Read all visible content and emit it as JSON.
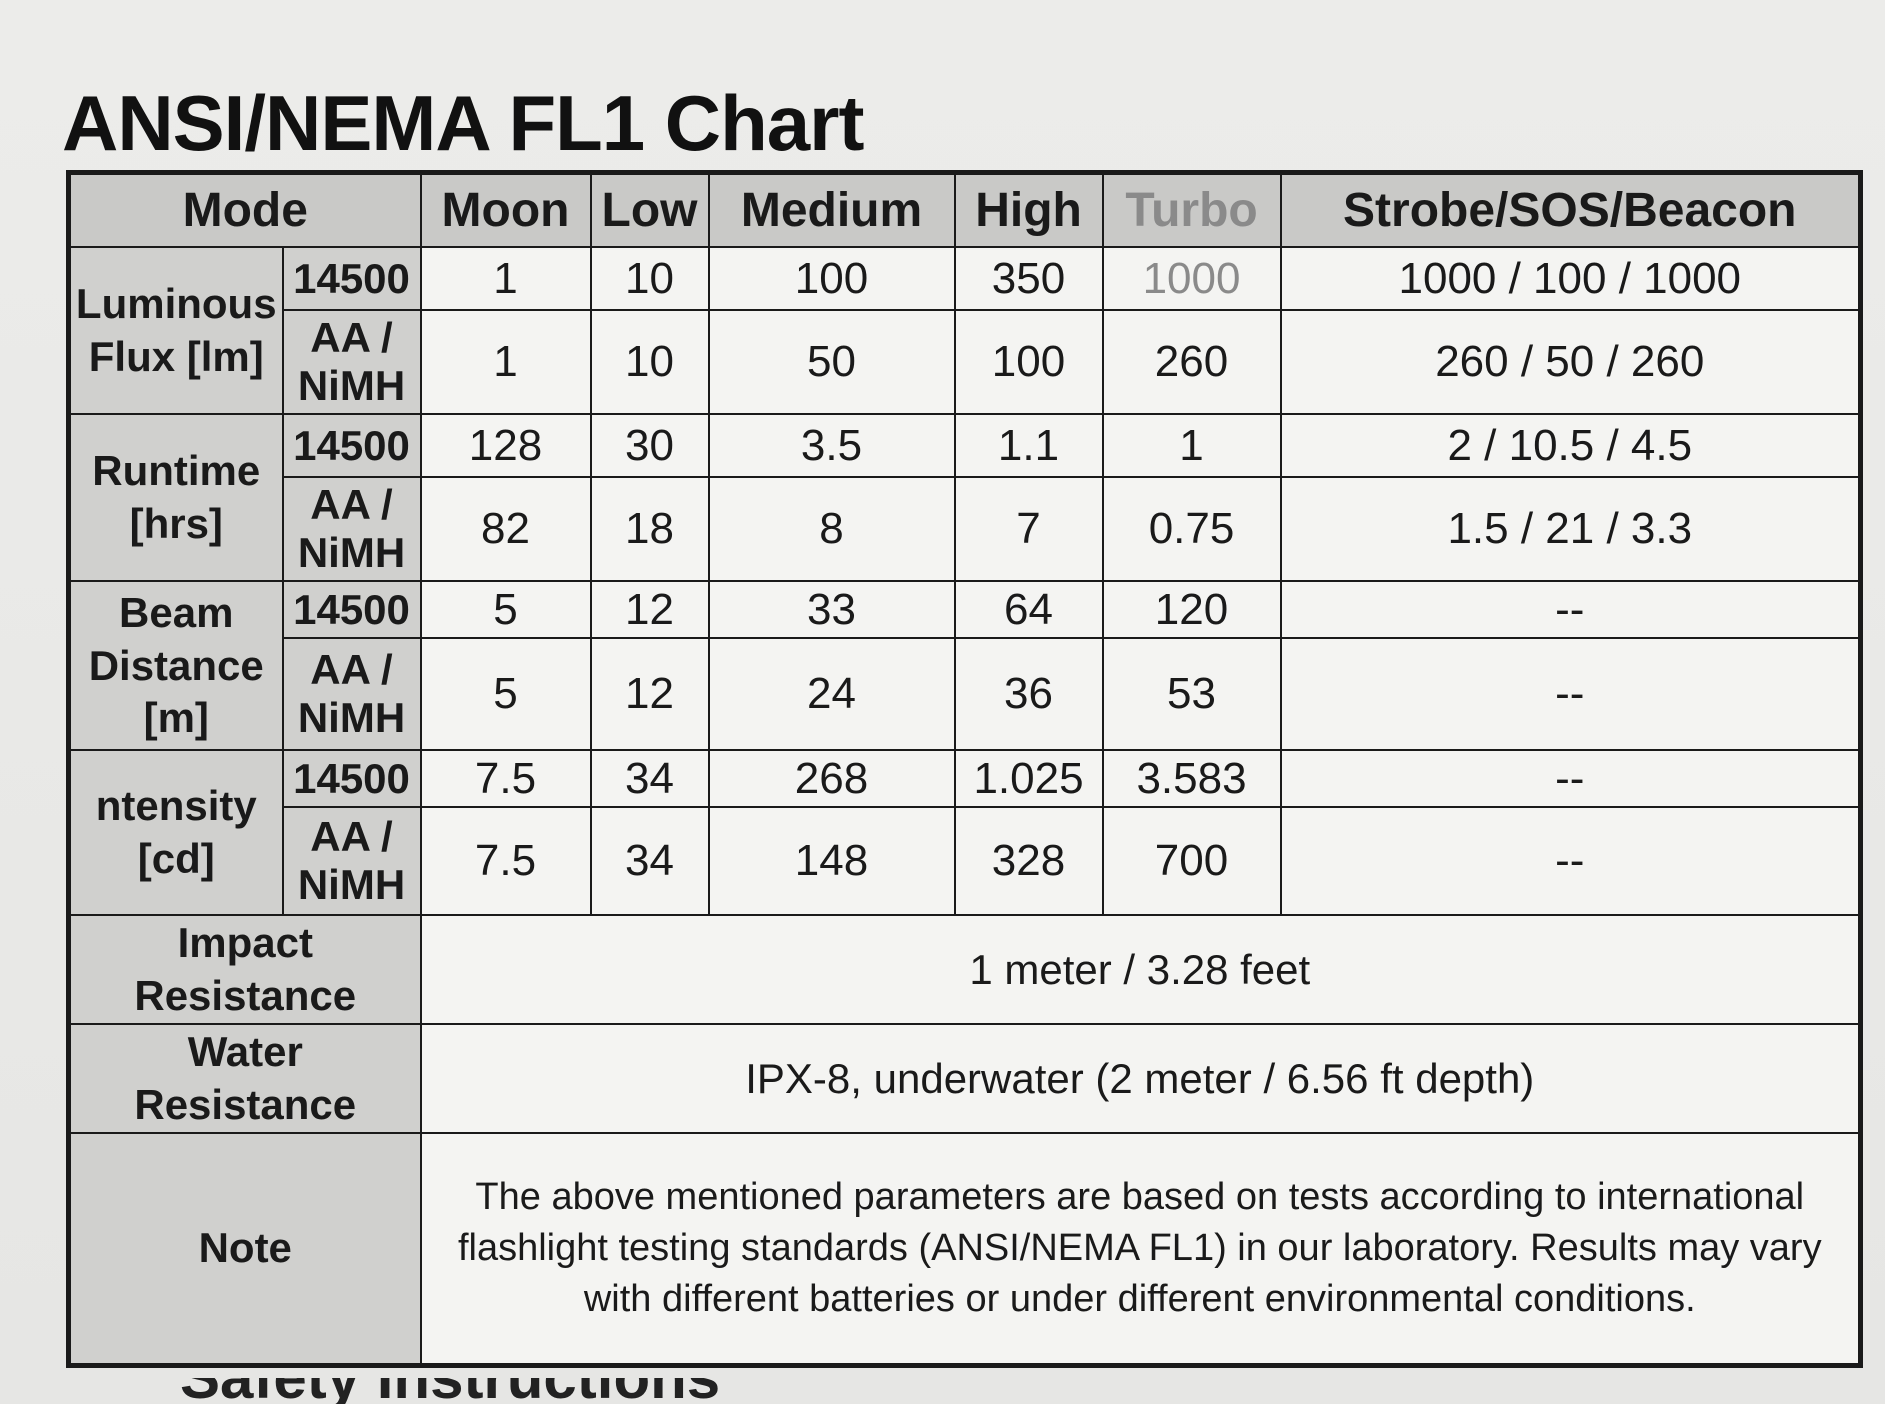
{
  "title": "ANSI/NEMA FL1 Chart",
  "header": {
    "mode": "Mode",
    "columns": [
      "Moon",
      "Low",
      "Medium",
      "High",
      "Turbo",
      "Strobe/SOS/Beacon"
    ]
  },
  "groups": [
    {
      "label_line1": "Luminous",
      "label_line2": "Flux [lm]",
      "rows": [
        {
          "battery_line1": "14500",
          "battery_line2": "",
          "values": [
            "1",
            "10",
            "100",
            "350",
            "1000",
            "1000 / 100 / 1000"
          ]
        },
        {
          "battery_line1": "AA /",
          "battery_line2": "NiMH",
          "values": [
            "1",
            "10",
            "50",
            "100",
            "260",
            "260 / 50 / 260"
          ]
        }
      ]
    },
    {
      "label_line1": "Runtime",
      "label_line2": "[hrs]",
      "rows": [
        {
          "battery_line1": "14500",
          "battery_line2": "",
          "values": [
            "128",
            "30",
            "3.5",
            "1.1",
            "1",
            "2 / 10.5 / 4.5"
          ]
        },
        {
          "battery_line1": "AA /",
          "battery_line2": "NiMH",
          "values": [
            "82",
            "18",
            "8",
            "7",
            "0.75",
            "1.5 / 21 / 3.3"
          ]
        }
      ]
    },
    {
      "label_line1": "Beam",
      "label_line2": "Distance",
      "label_line3": "[m]",
      "rows": [
        {
          "battery_line1": "14500",
          "battery_line2": "",
          "values": [
            "5",
            "12",
            "33",
            "64",
            "120",
            "--"
          ]
        },
        {
          "battery_line1": "AA /",
          "battery_line2": "NiMH",
          "values": [
            "5",
            "12",
            "24",
            "36",
            "53",
            "--"
          ]
        }
      ]
    },
    {
      "label_line1": "ntensity",
      "label_line2": "[cd]",
      "rows": [
        {
          "battery_line1": "14500",
          "battery_line2": "",
          "values": [
            "7.5",
            "34",
            "268",
            "1.025",
            "3.583",
            "--"
          ]
        },
        {
          "battery_line1": "AA /",
          "battery_line2": "NiMH",
          "values": [
            "7.5",
            "34",
            "148",
            "328",
            "700",
            "--"
          ]
        }
      ]
    }
  ],
  "impact": {
    "label_line1": "Impact",
    "label_line2": "Resistance",
    "value": "1 meter / 3.28 feet"
  },
  "water": {
    "label_line1": "Water",
    "label_line2": "Resistance",
    "value": "IPX-8, underwater (2 meter / 6.56 ft depth)"
  },
  "note": {
    "label": "Note",
    "text": "The above mentioned parameters are based on tests according to international flashlight testing standards (ANSI/NEMA FL1) in our laboratory. Results may vary with different batteries or under different environmental conditions."
  },
  "footer_peek": "Safety Instructions"
}
